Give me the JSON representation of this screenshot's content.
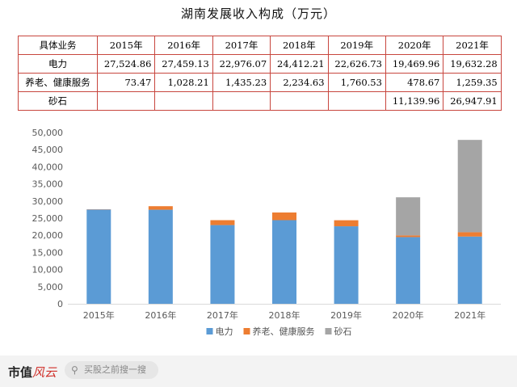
{
  "title": "湖南发展收入构成（万元）",
  "table": {
    "corner": "具体业务",
    "years": [
      "2015年",
      "2016年",
      "2017年",
      "2018年",
      "2019年",
      "2020年",
      "2021年"
    ],
    "rows": [
      {
        "label": "电力",
        "cells": [
          "27,524.86",
          "27,459.13",
          "22,976.07",
          "24,412.21",
          "22,626.73",
          "19,469.96",
          "19,632.28"
        ]
      },
      {
        "label": "养老、健康服务",
        "cells": [
          "73.47",
          "1,028.21",
          "1,435.23",
          "2,234.63",
          "1,760.53",
          "478.67",
          "1,259.35"
        ]
      },
      {
        "label": "砂石",
        "cells": [
          "",
          "",
          "",
          "",
          "",
          "11,139.96",
          "26,947.91"
        ]
      }
    ]
  },
  "chart_data": {
    "type": "bar",
    "stacked": true,
    "categories": [
      "2015年",
      "2016年",
      "2017年",
      "2018年",
      "2019年",
      "2020年",
      "2021年"
    ],
    "series": [
      {
        "name": "电力",
        "color": "#5b9bd5",
        "values": [
          27524.86,
          27459.13,
          22976.07,
          24412.21,
          22626.73,
          19469.96,
          19632.28
        ]
      },
      {
        "name": "养老、健康服务",
        "color": "#ed7d31",
        "values": [
          73.47,
          1028.21,
          1435.23,
          2234.63,
          1760.53,
          478.67,
          1259.35
        ]
      },
      {
        "name": "砂石",
        "color": "#a5a5a5",
        "values": [
          0,
          0,
          0,
          0,
          0,
          11139.96,
          26947.91
        ]
      }
    ],
    "ylim": [
      0,
      50000
    ],
    "yticks": [
      "0",
      "5,000",
      "10,000",
      "15,000",
      "20,000",
      "25,000",
      "30,000",
      "35,000",
      "40,000",
      "45,000",
      "50,000"
    ],
    "grid": false,
    "legend": "bottom"
  },
  "footer": {
    "brand_main": "市值",
    "brand_script": "风云",
    "search_placeholder": "买股之前搜一搜",
    "search_icon": "search-icon"
  }
}
